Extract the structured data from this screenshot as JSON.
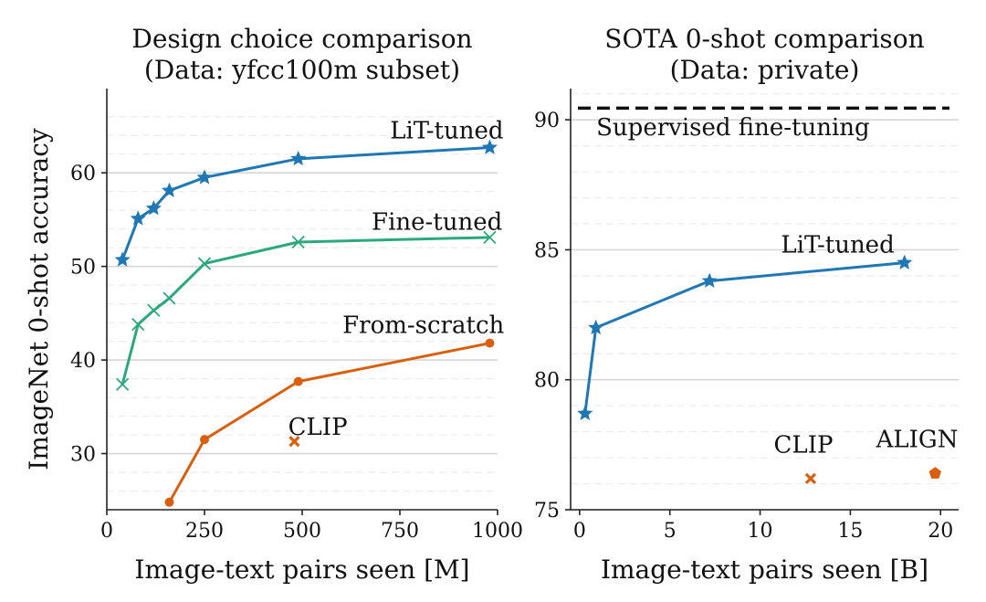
{
  "chart_data": [
    {
      "type": "line",
      "title_lines": [
        "Design choice comparison",
        "(Data: yfcc100m subset)"
      ],
      "xlabel": "Image-text pairs seen [M]",
      "ylabel": "ImageNet 0-shot accuracy",
      "xlim": [
        0,
        1000
      ],
      "ylim": [
        24,
        69
      ],
      "xticks": [
        0,
        250,
        500,
        750,
        1000
      ],
      "yticks": [
        30,
        40,
        50,
        60
      ],
      "minor_yticks": [
        26,
        28,
        32,
        34,
        36,
        38,
        42,
        44,
        46,
        48,
        52,
        54,
        56,
        58,
        62,
        64,
        66
      ],
      "grid": true,
      "series": [
        {
          "name": "LiT-tuned",
          "color": "#1f77b4",
          "marker": "star",
          "x": [
            40,
            80,
            120,
            160,
            250,
            490,
            980
          ],
          "y": [
            50.7,
            55.1,
            56.2,
            58.1,
            59.5,
            61.5,
            62.7
          ]
        },
        {
          "name": "Fine-tuned",
          "color": "#2ca87f",
          "marker": "x",
          "x": [
            40,
            80,
            120,
            160,
            250,
            490,
            980
          ],
          "y": [
            37.4,
            43.8,
            45.3,
            46.6,
            50.3,
            52.6,
            53.1
          ]
        },
        {
          "name": "From-scratch",
          "color": "#d95f0e",
          "marker": "circle",
          "x": [
            160,
            250,
            490,
            980
          ],
          "y": [
            24.8,
            31.5,
            37.7,
            41.8
          ]
        }
      ],
      "points": [
        {
          "name": "CLIP",
          "color": "#d95f0e",
          "marker": "x",
          "x": 480,
          "y": 31.3
        }
      ],
      "annotations": [
        {
          "text": "LiT-tuned",
          "x": 870,
          "y": 63.7
        },
        {
          "text": "Fine-tuned",
          "x": 845,
          "y": 53.9
        },
        {
          "text": "From-scratch",
          "x": 810,
          "y": 42.9
        },
        {
          "text": "CLIP",
          "x": 540,
          "y": 32.0
        }
      ]
    },
    {
      "type": "line",
      "title_lines": [
        "SOTA 0-shot comparison",
        "(Data: private)"
      ],
      "xlabel": "Image-text pairs seen [B]",
      "ylabel": "",
      "xlim": [
        -0.5,
        21
      ],
      "ylim": [
        75,
        91.2
      ],
      "xticks": [
        0,
        5,
        10,
        15,
        20
      ],
      "yticks": [
        75,
        80,
        85,
        90
      ],
      "minor_yticks": [
        76,
        77,
        78,
        79,
        81,
        82,
        83,
        84,
        86,
        87,
        88,
        89,
        91
      ],
      "grid": true,
      "series": [
        {
          "name": "LiT-tuned",
          "color": "#1f77b4",
          "marker": "star",
          "x": [
            0.3,
            0.9,
            7.2,
            18.0
          ],
          "y": [
            78.7,
            82.0,
            83.8,
            84.5
          ]
        }
      ],
      "hlines": [
        {
          "name": "Supervised fine-tuning",
          "y": 90.45,
          "color": "#111111",
          "style": "dashed"
        }
      ],
      "points": [
        {
          "name": "CLIP",
          "color": "#d95f0e",
          "marker": "x",
          "x": 12.8,
          "y": 76.2
        },
        {
          "name": "ALIGN",
          "color": "#d95f0e",
          "marker": "pentagon",
          "x": 19.7,
          "y": 76.4
        }
      ],
      "annotations": [
        {
          "text": "Supervised fine-tuning",
          "x": 8.5,
          "y": 89.4
        },
        {
          "text": "LiT-tuned",
          "x": 14.3,
          "y": 84.9
        },
        {
          "text": "CLIP",
          "x": 12.4,
          "y": 77.2
        },
        {
          "text": "ALIGN",
          "x": 18.7,
          "y": 77.4
        }
      ]
    }
  ]
}
